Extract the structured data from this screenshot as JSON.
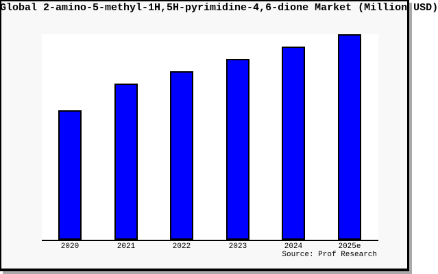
{
  "window": {
    "background": "#ffffff",
    "figure_background": "#f8f8f8",
    "frame_border_color": "#000000",
    "shadow_color": "#aaaaaa"
  },
  "title": {
    "text": "Global 2-amino-5-methyl-1H,5H-pyrimidine-4,6-dione Market (Million USD)"
  },
  "source": {
    "text": "Source: Prof Research"
  },
  "chart_data": {
    "type": "bar",
    "title": "Global 2-amino-5-methyl-1H,5H-pyrimidine-4,6-dione Market (Million USD)",
    "categories": [
      "2020",
      "2021",
      "2022",
      "2023",
      "2024",
      "2025e"
    ],
    "values": [
      63,
      76,
      82,
      88,
      94,
      100
    ],
    "values_note_unit": "relative index estimated from bar heights, 2025e = 100 (no y-axis labels shown)",
    "xlabel": "",
    "ylabel": "",
    "ylim": [
      0,
      100
    ],
    "grid": false,
    "legend": false,
    "y_axis_shown": false,
    "bar_color": "#0000ff",
    "bar_border_color": "#000000",
    "plot_background": "#ffffff",
    "annotation": "Source: Prof Research"
  }
}
